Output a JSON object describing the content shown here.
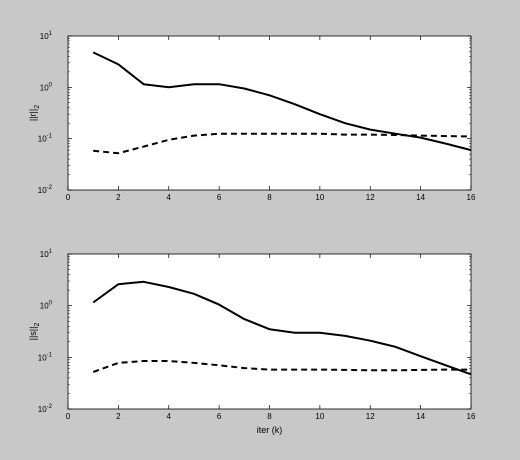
{
  "chart_data": [
    {
      "type": "line",
      "ylabel": "||r||",
      "ylabel_sub": "2",
      "xlabel": "",
      "xlim": [
        0,
        16
      ],
      "ylim": [
        0.01,
        10
      ],
      "yscale": "log",
      "grid": false,
      "x_ticks": [
        0,
        2,
        4,
        6,
        8,
        10,
        12,
        14,
        16
      ],
      "y_ticks": [
        0.01,
        0.1,
        1,
        10
      ],
      "y_tick_bases": [
        "10",
        "10",
        "10",
        "10"
      ],
      "y_tick_exps": [
        "-2",
        "-1",
        "0",
        "1"
      ],
      "series": [
        {
          "style": "solid",
          "color": "#000000",
          "x": [
            1,
            2,
            3,
            4,
            5,
            6,
            7,
            8,
            9,
            10,
            11,
            12,
            13,
            14,
            15,
            16
          ],
          "y": [
            4.8,
            2.8,
            1.15,
            1.0,
            1.15,
            1.15,
            0.95,
            0.7,
            0.47,
            0.3,
            0.2,
            0.15,
            0.125,
            0.105,
            0.08,
            0.06
          ]
        },
        {
          "style": "dashed",
          "color": "#000000",
          "x": [
            1,
            2,
            3,
            4,
            5,
            6,
            7,
            8,
            9,
            10,
            11,
            12,
            13,
            14,
            15,
            16
          ],
          "y": [
            0.058,
            0.052,
            0.07,
            0.095,
            0.115,
            0.125,
            0.125,
            0.125,
            0.125,
            0.125,
            0.12,
            0.12,
            0.118,
            0.115,
            0.112,
            0.11
          ]
        }
      ]
    },
    {
      "type": "line",
      "ylabel": "||s||",
      "ylabel_sub": "2",
      "xlabel": "iter (k)",
      "xlim": [
        0,
        16
      ],
      "ylim": [
        0.01,
        10
      ],
      "yscale": "log",
      "grid": false,
      "x_ticks": [
        0,
        2,
        4,
        6,
        8,
        10,
        12,
        14,
        16
      ],
      "y_ticks": [
        0.01,
        0.1,
        1,
        10
      ],
      "y_tick_bases": [
        "10",
        "10",
        "10",
        "10"
      ],
      "y_tick_exps": [
        "-2",
        "-1",
        "0",
        "1"
      ],
      "series": [
        {
          "style": "solid",
          "color": "#000000",
          "x": [
            1,
            2,
            3,
            4,
            5,
            6,
            7,
            8,
            9,
            10,
            11,
            12,
            13,
            14,
            15,
            16
          ],
          "y": [
            1.15,
            2.6,
            2.9,
            2.3,
            1.7,
            1.05,
            0.55,
            0.35,
            0.3,
            0.3,
            0.26,
            0.21,
            0.16,
            0.105,
            0.07,
            0.047
          ]
        },
        {
          "style": "dashed",
          "color": "#000000",
          "x": [
            1,
            2,
            3,
            4,
            5,
            6,
            7,
            8,
            9,
            10,
            11,
            12,
            13,
            14,
            15,
            16
          ],
          "y": [
            0.052,
            0.078,
            0.085,
            0.085,
            0.078,
            0.07,
            0.062,
            0.058,
            0.058,
            0.058,
            0.057,
            0.056,
            0.056,
            0.057,
            0.058,
            0.058
          ]
        }
      ]
    }
  ]
}
